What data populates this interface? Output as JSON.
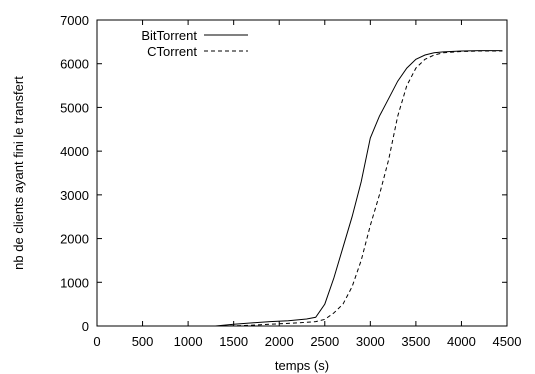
{
  "chart_data": {
    "type": "line",
    "title": "",
    "xlabel": "temps (s)",
    "ylabel": "nb de clients ayant fini le transfert",
    "xlim": [
      0,
      4500
    ],
    "ylim": [
      0,
      7000
    ],
    "xticks": [
      0,
      500,
      1000,
      1500,
      2000,
      2500,
      3000,
      3500,
      4000,
      4500
    ],
    "yticks": [
      0,
      1000,
      2000,
      3000,
      4000,
      5000,
      6000,
      7000
    ],
    "grid": false,
    "legend_position": "top-left",
    "series": [
      {
        "name": "BitTorrent",
        "style": "solid",
        "color": "#000000",
        "points": [
          [
            0,
            0
          ],
          [
            1300,
            0
          ],
          [
            1400,
            20
          ],
          [
            1500,
            40
          ],
          [
            1700,
            70
          ],
          [
            1900,
            100
          ],
          [
            2100,
            120
          ],
          [
            2300,
            160
          ],
          [
            2400,
            200
          ],
          [
            2500,
            500
          ],
          [
            2600,
            1100
          ],
          [
            2700,
            1800
          ],
          [
            2800,
            2500
          ],
          [
            2900,
            3300
          ],
          [
            3000,
            4300
          ],
          [
            3100,
            4800
          ],
          [
            3200,
            5200
          ],
          [
            3300,
            5600
          ],
          [
            3400,
            5900
          ],
          [
            3500,
            6100
          ],
          [
            3600,
            6200
          ],
          [
            3700,
            6250
          ],
          [
            3800,
            6270
          ],
          [
            4000,
            6290
          ],
          [
            4200,
            6300
          ],
          [
            4450,
            6300
          ]
        ]
      },
      {
        "name": "CTorrent",
        "style": "dashed",
        "color": "#000000",
        "points": [
          [
            0,
            0
          ],
          [
            1400,
            0
          ],
          [
            1600,
            10
          ],
          [
            1800,
            30
          ],
          [
            2000,
            50
          ],
          [
            2200,
            70
          ],
          [
            2400,
            100
          ],
          [
            2500,
            150
          ],
          [
            2600,
            300
          ],
          [
            2700,
            500
          ],
          [
            2800,
            900
          ],
          [
            2900,
            1500
          ],
          [
            3000,
            2300
          ],
          [
            3100,
            3000
          ],
          [
            3200,
            3800
          ],
          [
            3300,
            4800
          ],
          [
            3400,
            5500
          ],
          [
            3500,
            5900
          ],
          [
            3600,
            6100
          ],
          [
            3700,
            6200
          ],
          [
            3800,
            6250
          ],
          [
            4000,
            6280
          ],
          [
            4200,
            6290
          ],
          [
            4450,
            6290
          ]
        ]
      }
    ]
  }
}
